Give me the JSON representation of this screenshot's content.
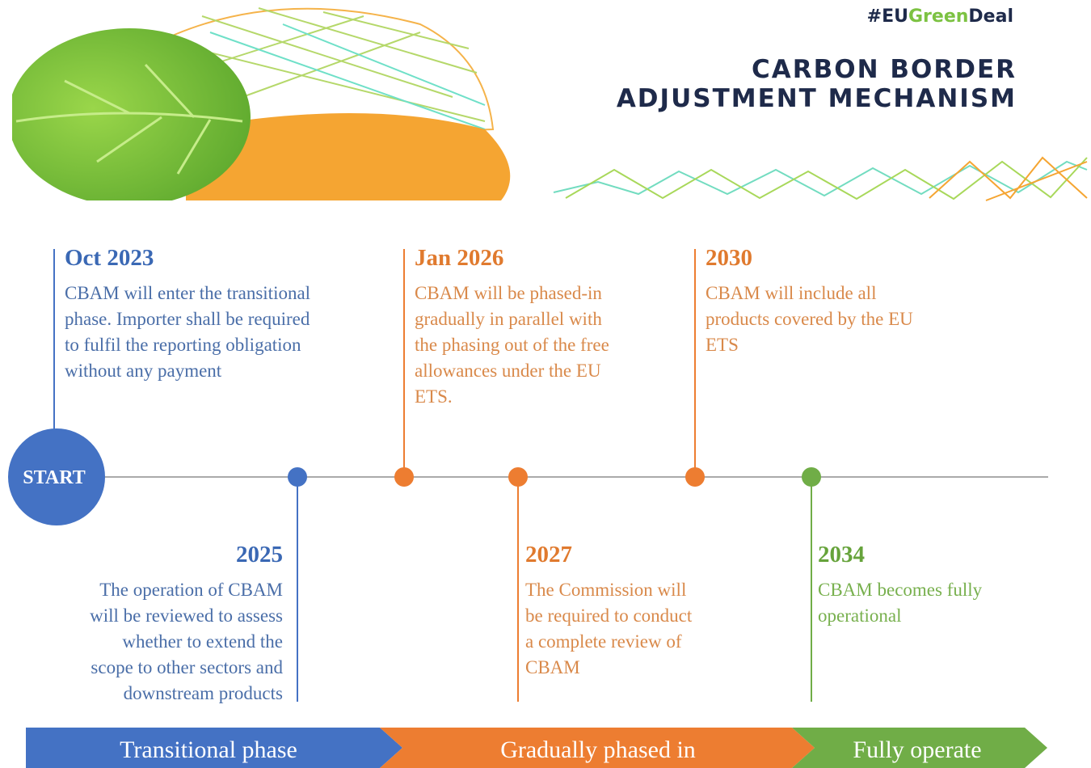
{
  "header": {
    "hashtag": [
      "#EU",
      "Green",
      "Deal"
    ],
    "title": [
      "CARBON BORDER",
      "ADJUSTMENT MECHANISM"
    ]
  },
  "timeline": {
    "start": "START",
    "events": [
      {
        "date": "Oct 2023",
        "lines": [
          "CBAM will enter the transitional",
          "phase. Importer shall be required",
          "to fulfil the reporting obligation",
          "without any payment"
        ]
      },
      {
        "date": "2025",
        "lines": [
          "The operation of CBAM",
          "will be reviewed to assess",
          "whether to extend the",
          "scope to other sectors and",
          "downstream products"
        ]
      },
      {
        "date": "Jan 2026",
        "lines": [
          "CBAM will be phased-in",
          "gradually in parallel with",
          "the phasing out of the free",
          "allowances under the EU",
          "ETS."
        ]
      },
      {
        "date": "2027",
        "lines": [
          "The Commission will",
          "be required to conduct",
          "a complete review of",
          "CBAM"
        ]
      },
      {
        "date": "2030",
        "lines": [
          "CBAM will include all",
          "products covered by the EU",
          "ETS"
        ]
      },
      {
        "date": "2034",
        "lines": [
          "CBAM becomes fully",
          "operational"
        ]
      }
    ]
  },
  "phases": [
    "Transitional phase",
    "Gradually phased in",
    "Fully operate"
  ]
}
